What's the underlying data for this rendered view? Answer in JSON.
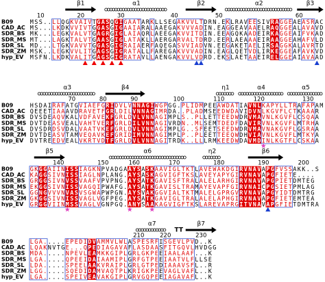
{
  "blocks": [
    {
      "ss": [
        "β1",
        "α1",
        "β2",
        "α2",
        "β3"
      ],
      "numbers": [
        10,
        20,
        30,
        40,
        50,
        60
      ],
      "rows": [
        {
          "name": "B09",
          "seq": "MSS..LLQGKVAIVTGASQGIGAATARKLLSEGAKVVLTDRN.EKLRAVEESIVRAGGEAEASRAC"
        },
        {
          "name": "CAD_AC",
          "seq": "MS...LKDKVVIVTGGASGIGAAIARALAAEGAKVVVADIN.EAGGEAVAAELRAQGGEALAVAVD"
        },
        {
          "name": "SDR_BS",
          "seq": "MK...LEGKVALVTGAGRGIGLAIAQRLAEEGAKVVITDIN.EEAGQKAADEIRKAGGEAIFVKAD"
        },
        {
          "name": "SDR_MS",
          "seq": "MT...LAGKTALVTGAASGIGLATAKLLAERGARVALTDRD.EERLAEAAAEIRAAGGEAHAFVLD"
        },
        {
          "name": "SDR_SL",
          "seq": "MD...LTGKVAVVTGGASGIGRAIAERFAQEGASVVIADVN.EEGAKETAELIRSAGGKALAVRTD"
        },
        {
          "name": "SDR_ZM",
          "seq": "MSK..LEGKVVLITGAGSGIGRATALLFAREGAKVVVADIN.EAGLQETVDLIRKEGGEAFAVKVD"
        },
        {
          "name": "hyp_EV",
          "seq": "MSFN.LKDKVALITGAGSGIGRATAVLLAENGAKVVLVDRD.EKSLAETAAEIRELGGEAIAVAAD"
        }
      ]
    },
    {
      "ss": [
        "α3",
        "β4",
        "η1",
        "α4",
        "α5"
      ],
      "numbers": [
        70,
        80,
        90,
        100,
        110,
        120,
        130
      ],
      "rows": [
        {
          "name": "B09",
          "seq": "HSDAIRAFATGVIAEFGRIDVLVNNAGIWGPGG.PLIDMPEEAWDATIAVNLKAPYLLTRAFAPAM"
        },
        {
          "name": "CAD_AC",
          "seq": "QEEETIAAAVDRAVETFGRLDILVNNAGIMRDA..PLADMSEEDWDAVIDVNLKGVFLCTKAAAR"
        },
        {
          "name": "SDR_BS",
          "seq": "DVSDEAQVKALVDFAVEKFGRLDVLVNNAGIMPLS..PLLETTEEDWDRVMAVNLKGVFLCSQAA"
        },
        {
          "name": "SDR_MS",
          "seq": "DVTDEASVEALVAHTVERFGRLDILVNNAGIVRDN..MLSEMTDEDFDAVIRVNLKGVFLMTRHA"
        },
        {
          "name": "SDR_SL",
          "seq": "DVSDRDSVDALVAATVKEFGRLDVLVNNAGIMPLG..SFEETSEEDWDRVMAVNAKGVFLGSRAA"
        },
        {
          "name": "SDR_ZM",
          "seq": "DVTDEASVTAMVEQAVKEFGRIDIMVNNAGIMPLP..PLEETTEEQWDHVIAVNLKGVFLMTKYA"
        },
        {
          "name": "hyp_EV",
          "seq": "DVTREEDVEALVKRTVDTFGRLDVLVNNAGITRDK..LLLRMKEEDWDAVMDINLKGTFLCSKAA"
        }
      ]
    },
    {
      "ss": [
        "β5",
        "α6",
        "η2",
        "β6"
      ],
      "numbers": [
        140,
        150,
        160,
        170,
        180,
        190,
        200
      ],
      "rows": [
        {
          "name": "B09",
          "seq": "GKGGAIINISSIAGKNPVADGAAYSASKAAVIGLTKTLAVEWAKDGIRVNAVAPGFVSSAKK..S"
        },
        {
          "name": "CAD_AC",
          "seq": "KAGGSIVNISSIAGLNPLANG.AYSASKAGVIGFTKSLAVEYAPYGIRVNAVAPGFIETE...."
        },
        {
          "name": "SDR_BS",
          "seq": "GRGGSIVNVSSVAAFVPVPNG.AYSATKGAVISFTRALALELARHGIRVNAVAPGPIETDMTEG"
        },
        {
          "name": "SDR_MS",
          "seq": "EKGGSIVNISSVAGQIPWAFG.AYSATKGAVISLTRAMAYEVAPFGIRVNAICPGSIETPMLAG"
        },
        {
          "name": "SDR_SL",
          "seq": "GGNGVVVNVASVSGWAPWPGN.AYSVAKGGVIALTKTMALELGPRGVRVNAVAPGYIDTDMTRG"
        },
        {
          "name": "SDR_ZM",
          "seq": "GKGGSIVNISSVAGLVGFPEG.AYSATKGAVIGLTRALALELAPHGIRVNAVAPGFIETEMTEA"
        },
        {
          "name": "hyp_EV",
          "seq": "GRGGVIINMSSVAGLVGNPGQ.ANYSAAKAGVIGFTKSLAREVAPRGITVNAVAPGFIETDMTRA"
        }
      ]
    },
    {
      "ss": [
        "α7",
        "TT",
        "β7"
      ],
      "numbers": [
        210,
        220,
        230
      ],
      "rows": [
        {
          "name": "B09",
          "seq": "LGA.....EPEDIDVAMMVLWLASPESRFISGEVLPVD..K"
        },
        {
          "name": "CAD_AC",
          "seq": "LQAKNVTGE...QPEDIAGAVAFLASDAASFITGQVLHVDGG"
        },
        {
          "name": "SDR_BS",
          "seq": "MDA.....NPEVLEAMKKGIPLGRLGKPEEIAALAAF...K"
        },
        {
          "name": "SDR_MS",
          "seq": "LGA.....QPEEIDAIAAMIPLGRFGTPEEIAATVLFLLSE"
        },
        {
          "name": "SDR_SL",
          "seq": "LDA.....SPEELAAKVRAIPLGRLGTPEDIAAAVSFL..R"
        },
        {
          "name": "SDR_ZM",
          "seq": "LGG.....SQEDIDAMVAQTPLKRIGKPEEVAGLVAFL..K"
        },
        {
          "name": "hyp_EV",
          "seq": "LGA.....SPEIVEAVAKGIPLGRVGQPEEIAGAVAFL..K"
        }
      ]
    }
  ]
}
